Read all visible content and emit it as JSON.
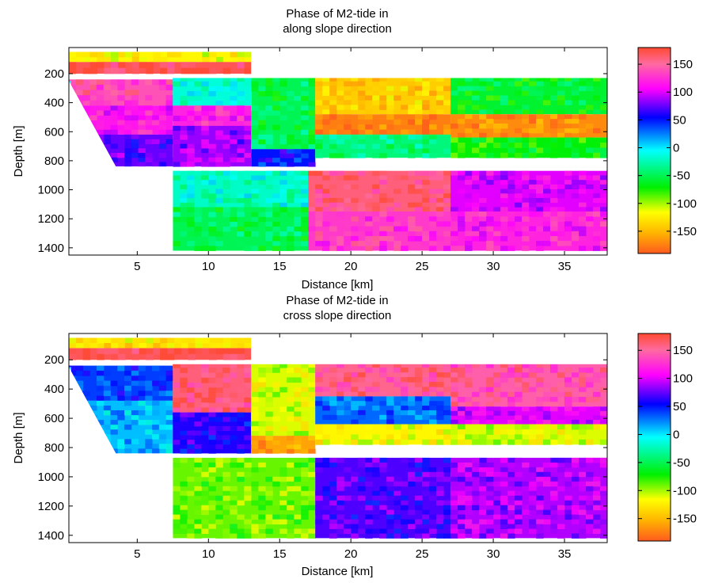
{
  "chart_data": [
    {
      "type": "heatmap",
      "title": [
        "Phase of M2-tide in",
        "along slope direction"
      ],
      "xlabel": "Distance [km]",
      "ylabel": "Depth [m]",
      "xlim": [
        0.2,
        38
      ],
      "ylim": [
        1450,
        20
      ],
      "y_reversed": true,
      "xticks": [
        5,
        10,
        15,
        20,
        25,
        30,
        35
      ],
      "yticks": [
        200,
        400,
        600,
        800,
        1000,
        1200,
        1400
      ],
      "colorbar": {
        "ticks": [
          150,
          100,
          50,
          0,
          -50,
          -100,
          -150
        ],
        "range": [
          -190,
          180
        ]
      },
      "blocks": [
        {
          "x": [
            0.2,
            13
          ],
          "y": [
            50,
            120
          ],
          "v": -120
        },
        {
          "x": [
            0.2,
            13
          ],
          "y": [
            120,
            200
          ],
          "v": 170
        },
        {
          "x": [
            0.2,
            7.5
          ],
          "y": [
            240,
            420
          ],
          "v": 140
        },
        {
          "x": [
            0.2,
            7.5
          ],
          "y": [
            420,
            620
          ],
          "v": 115
        },
        {
          "x": [
            0.2,
            7.5
          ],
          "y": [
            620,
            840
          ],
          "v": 75
        },
        {
          "x": [
            7.5,
            13
          ],
          "y": [
            220,
            420
          ],
          "v": -15
        },
        {
          "x": [
            7.5,
            13
          ],
          "y": [
            420,
            560
          ],
          "v": 120
        },
        {
          "x": [
            7.5,
            13
          ],
          "y": [
            560,
            840
          ],
          "v": 85
        },
        {
          "x": [
            13,
            17.5
          ],
          "y": [
            220,
            720
          ],
          "v": -50
        },
        {
          "x": [
            13,
            17.5
          ],
          "y": [
            720,
            840
          ],
          "v": 50
        },
        {
          "x": [
            17.5,
            27
          ],
          "y": [
            220,
            480
          ],
          "v": -140
        },
        {
          "x": [
            17.5,
            27
          ],
          "y": [
            480,
            620
          ],
          "v": -175
        },
        {
          "x": [
            17.5,
            27
          ],
          "y": [
            620,
            780
          ],
          "v": -40
        },
        {
          "x": [
            27,
            38
          ],
          "y": [
            220,
            480
          ],
          "v": -60
        },
        {
          "x": [
            27,
            38
          ],
          "y": [
            480,
            640
          ],
          "v": -170
        },
        {
          "x": [
            27,
            38
          ],
          "y": [
            640,
            780
          ],
          "v": -70
        },
        {
          "x": [
            7.5,
            17
          ],
          "y": [
            870,
            1120
          ],
          "v": -20
        },
        {
          "x": [
            7.5,
            17
          ],
          "y": [
            1120,
            1420
          ],
          "v": -50
        },
        {
          "x": [
            17,
            27
          ],
          "y": [
            870,
            1150
          ],
          "v": 160
        },
        {
          "x": [
            17,
            27
          ],
          "y": [
            1150,
            1420
          ],
          "v": 130
        },
        {
          "x": [
            27,
            38
          ],
          "y": [
            870,
            1150
          ],
          "v": 100
        },
        {
          "x": [
            27,
            38
          ],
          "y": [
            1150,
            1420
          ],
          "v": 120
        }
      ]
    },
    {
      "type": "heatmap",
      "title": [
        "Phase of M2-tide in",
        "cross slope direction"
      ],
      "xlabel": "Distance [km]",
      "ylabel": "Depth [m]",
      "xlim": [
        0.2,
        38
      ],
      "ylim": [
        1450,
        20
      ],
      "y_reversed": true,
      "xticks": [
        5,
        10,
        15,
        20,
        25,
        30,
        35
      ],
      "yticks": [
        200,
        400,
        600,
        800,
        1000,
        1200,
        1400
      ],
      "colorbar": {
        "ticks": [
          150,
          100,
          50,
          0,
          -50,
          -100,
          -150
        ],
        "range": [
          -190,
          180
        ]
      },
      "blocks": [
        {
          "x": [
            0.2,
            13
          ],
          "y": [
            50,
            120
          ],
          "v": -130
        },
        {
          "x": [
            0.2,
            13
          ],
          "y": [
            120,
            200
          ],
          "v": 170
        },
        {
          "x": [
            0.2,
            7.5
          ],
          "y": [
            240,
            480
          ],
          "v": 40
        },
        {
          "x": [
            0.2,
            7.5
          ],
          "y": [
            480,
            840
          ],
          "v": 10
        },
        {
          "x": [
            7.5,
            13
          ],
          "y": [
            220,
            560
          ],
          "v": 160
        },
        {
          "x": [
            7.5,
            13
          ],
          "y": [
            560,
            840
          ],
          "v": 60
        },
        {
          "x": [
            13,
            17.5
          ],
          "y": [
            220,
            720
          ],
          "v": -110
        },
        {
          "x": [
            13,
            17.5
          ],
          "y": [
            720,
            840
          ],
          "v": -160
        },
        {
          "x": [
            17.5,
            27
          ],
          "y": [
            220,
            450
          ],
          "v": 155
        },
        {
          "x": [
            17.5,
            27
          ],
          "y": [
            450,
            640
          ],
          "v": 30
        },
        {
          "x": [
            17.5,
            27
          ],
          "y": [
            640,
            780
          ],
          "v": -120
        },
        {
          "x": [
            27,
            38
          ],
          "y": [
            220,
            520
          ],
          "v": 145
        },
        {
          "x": [
            27,
            38
          ],
          "y": [
            520,
            640
          ],
          "v": 100
        },
        {
          "x": [
            27,
            38
          ],
          "y": [
            640,
            780
          ],
          "v": -110
        },
        {
          "x": [
            7.5,
            17.5
          ],
          "y": [
            870,
            1420
          ],
          "v": -90
        },
        {
          "x": [
            17.5,
            27
          ],
          "y": [
            870,
            1420
          ],
          "v": 70
        },
        {
          "x": [
            27,
            38
          ],
          "y": [
            870,
            1420
          ],
          "v": 90
        }
      ]
    }
  ]
}
